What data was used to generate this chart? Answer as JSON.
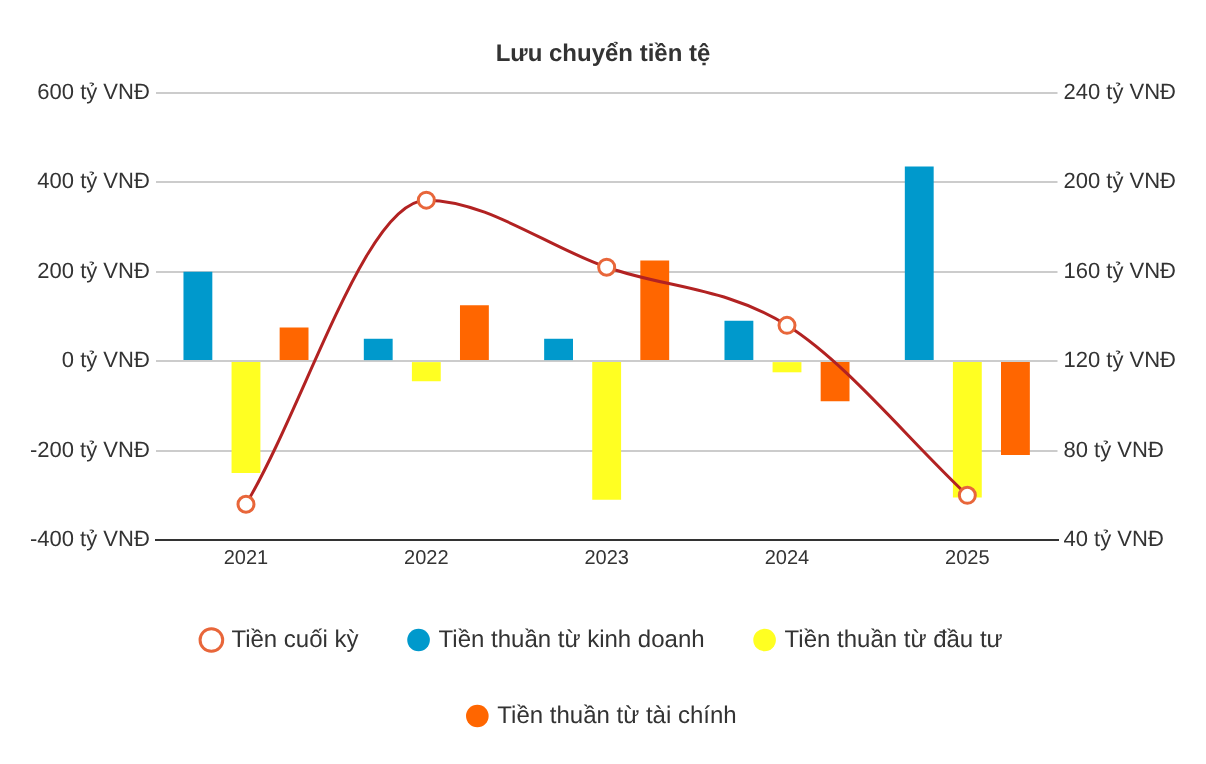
{
  "chart_data": {
    "type": "bar",
    "title": "Lưu chuyển tiền tệ",
    "categories": [
      "2021",
      "2022",
      "2023",
      "2024",
      "2025"
    ],
    "series": [
      {
        "name": "Tiền thuần từ kinh doanh",
        "color": "#0099cc",
        "values": [
          200,
          50,
          50,
          90,
          435
        ]
      },
      {
        "name": "Tiền thuần từ đầu tư",
        "color": "#ffff22",
        "values": [
          -250,
          -45,
          -310,
          -25,
          -305
        ]
      },
      {
        "name": "Tiền thuần từ tài chính",
        "color": "#ff6600",
        "values": [
          75,
          125,
          225,
          -90,
          -210
        ]
      },
      {
        "name": "Tiền cuối kỳ",
        "type": "line",
        "axis": "y2",
        "color": "#b22222",
        "marker": "circle",
        "values": [
          56,
          192,
          162,
          136,
          60
        ]
      }
    ],
    "ylim": [
      -400,
      600
    ],
    "yticks": [
      {
        "value": -400,
        "label": "-400 tỷ VNĐ"
      },
      {
        "value": -200,
        "label": "-200 tỷ VNĐ"
      },
      {
        "value": 0,
        "label": "0 tỷ VNĐ"
      },
      {
        "value": 200,
        "label": "200 tỷ VNĐ"
      },
      {
        "value": 400,
        "label": "400 tỷ VNĐ"
      },
      {
        "value": 600,
        "label": "600 tỷ VNĐ"
      }
    ],
    "y2lim": [
      40,
      240
    ],
    "y2ticks": [
      {
        "value": 40,
        "label": "40 tỷ VNĐ"
      },
      {
        "value": 80,
        "label": "80 tỷ VNĐ"
      },
      {
        "value": 120,
        "label": "120 tỷ VNĐ"
      },
      {
        "value": 160,
        "label": "160 tỷ VNĐ"
      },
      {
        "value": 200,
        "label": "200 tỷ VNĐ"
      },
      {
        "value": 240,
        "label": "240 tỷ VNĐ"
      }
    ],
    "grid": "y",
    "legend": "bottom"
  }
}
